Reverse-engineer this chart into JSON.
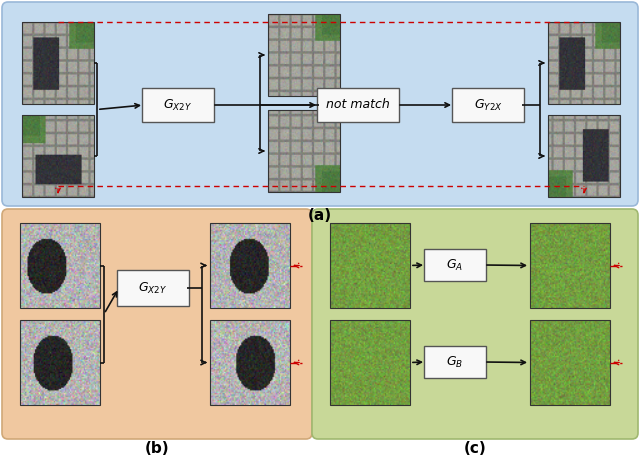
{
  "fig_width": 6.4,
  "fig_height": 4.72,
  "bg_color": "#f0f0f0",
  "panel_a": {
    "bg_color": "#c5dcf0",
    "edge_color": "#9ab8d8",
    "label": "(a)"
  },
  "panel_b": {
    "bg_color": "#f0c8a0",
    "edge_color": "#d0a878",
    "label": "(b)"
  },
  "panel_c": {
    "bg_color": "#c8d898",
    "edge_color": "#a0b870",
    "label": "(c)"
  },
  "arrow_color": "#111111",
  "red_arrow_color": "#cc0000",
  "box_edge_color": "#555555",
  "box_face_color": "#f8f8f8"
}
